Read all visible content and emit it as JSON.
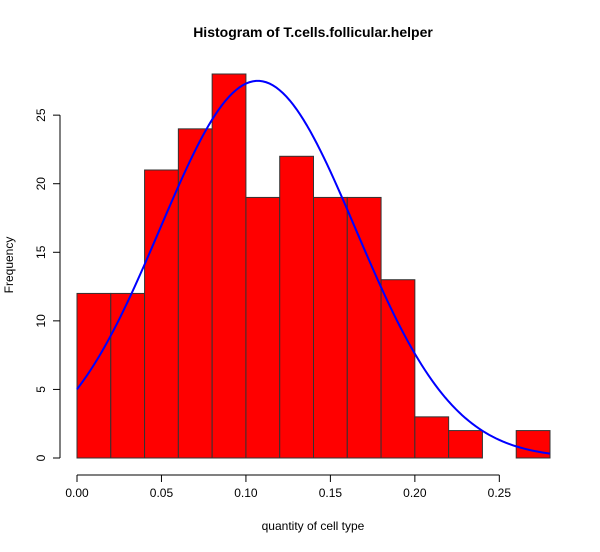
{
  "chart_data": {
    "type": "bar",
    "title": "Histogram of T.cells.follicular.helper",
    "xlabel": "quantity of cell type",
    "ylabel": "Frequency",
    "bins": [
      {
        "x0": 0.0,
        "x1": 0.02,
        "count": 12
      },
      {
        "x0": 0.02,
        "x1": 0.04,
        "count": 12
      },
      {
        "x0": 0.04,
        "x1": 0.06,
        "count": 21
      },
      {
        "x0": 0.06,
        "x1": 0.08,
        "count": 24
      },
      {
        "x0": 0.08,
        "x1": 0.1,
        "count": 28
      },
      {
        "x0": 0.1,
        "x1": 0.12,
        "count": 19
      },
      {
        "x0": 0.12,
        "x1": 0.14,
        "count": 22
      },
      {
        "x0": 0.14,
        "x1": 0.16,
        "count": 19
      },
      {
        "x0": 0.16,
        "x1": 0.18,
        "count": 19
      },
      {
        "x0": 0.18,
        "x1": 0.2,
        "count": 13
      },
      {
        "x0": 0.2,
        "x1": 0.22,
        "count": 3
      },
      {
        "x0": 0.22,
        "x1": 0.24,
        "count": 2
      },
      {
        "x0": 0.24,
        "x1": 0.26,
        "count": 0
      },
      {
        "x0": 0.26,
        "x1": 0.28,
        "count": 2
      }
    ],
    "x_ticks": [
      0.0,
      0.05,
      0.1,
      0.15,
      0.2,
      0.25
    ],
    "x_tick_labels": [
      "0.00",
      "0.05",
      "0.10",
      "0.15",
      "0.20",
      "0.25"
    ],
    "y_ticks": [
      0,
      5,
      10,
      15,
      20,
      25
    ],
    "y_tick_labels": [
      "0",
      "5",
      "10",
      "15",
      "20",
      "25"
    ],
    "xlim": [
      0.0,
      0.28
    ],
    "ylim": [
      0,
      28
    ],
    "density_curve": {
      "mean": 0.107,
      "sd": 0.058,
      "scale_peak": 27.5
    },
    "colors": {
      "bar_fill": "#ff0000",
      "bar_stroke": "#333333",
      "curve": "#0000ff"
    },
    "grid": false
  }
}
